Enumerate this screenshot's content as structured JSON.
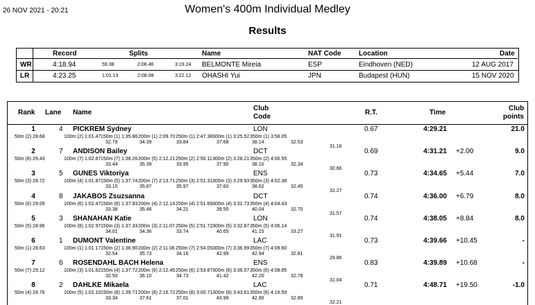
{
  "header": {
    "date": "26 NOV 2021 - 20:21",
    "title": "Women's 400m Individual Medley",
    "subtitle": "Results"
  },
  "records": {
    "columns": {
      "record": "Record",
      "splits": "Splits",
      "name": "Name",
      "nat": "NAT Code",
      "location": "Location",
      "date": "Date"
    },
    "rows": [
      {
        "label": "WR",
        "time": "4:18.94",
        "s1": "59.38",
        "s2": "2:06.46",
        "s3": "3:19.24",
        "name": "BELMONTE Mireia",
        "nat": "ESP",
        "location": "Eindhoven (NED)",
        "date": "12 AUG 2017"
      },
      {
        "label": "LR",
        "time": "4:23.25",
        "s1": "1:01.13",
        "s2": "2:08.08",
        "s3": "3:22.12",
        "name": "OHASHI Yui",
        "nat": "JPN",
        "location": "Budapest (HUN)",
        "date": "15 NOV 2020"
      }
    ]
  },
  "results": {
    "columns": {
      "rank": "Rank",
      "lane": "Lane",
      "name": "Name",
      "club1": "Club",
      "club2": "Code",
      "rt": "R.T.",
      "time": "Time",
      "pts1": "Club",
      "pts2": "points"
    },
    "rows": [
      {
        "rank": "1",
        "lane": "4",
        "name": "PICKREM Sydney",
        "club": "LON",
        "rt": "0.67",
        "time": "4:29.21",
        "behind": "",
        "points": "21.0",
        "splits": [
          "50m (2) 28.68",
          "100m (2) 1:01.47",
          "150m (1) 1:35.86",
          "200m (1) 2:09.70",
          "250m (1) 2:47.38",
          "300m (1) 3:25.52",
          "350m (1) 3:58.05"
        ],
        "seg": [
          "32.79",
          "34.39",
          "33.84",
          "37.68",
          "38.14",
          "32.53",
          "31.16"
        ]
      },
      {
        "rank": "2",
        "lane": "7",
        "name": "ANDISON Bailey",
        "club": "DCT",
        "rt": "0.69",
        "time": "4:31.21",
        "behind": "+2.00",
        "points": "9.0",
        "splits": [
          "50m (8) 29.43",
          "100m (7) 1:02.87",
          "150m (7) 1:38.26",
          "200m (5) 2:12.21",
          "250m (2) 2:50.11",
          "300m (2) 3:28.21",
          "350m (2) 4:00.55"
        ],
        "seg": [
          "33.44",
          "35.39",
          "33.95",
          "37.90",
          "38.10",
          "32.34",
          "30.66"
        ]
      },
      {
        "rank": "3",
        "lane": "5",
        "name": "GUNES Viktoriya",
        "club": "ENS",
        "rt": "0.73",
        "time": "4:34.65",
        "behind": "+5.44",
        "points": "7.0",
        "splits": [
          "50m (3) 28.72",
          "100m (4) 1:01.87",
          "150m (5) 1:37.74",
          "200m (7) 2:13.71",
          "250m (3) 2:51.31",
          "300m (3) 3:29.93",
          "350m (3) 4:02.38"
        ],
        "seg": [
          "33.15",
          "35.87",
          "35.97",
          "37.60",
          "38.62",
          "32.45",
          "32.27"
        ]
      },
      {
        "rank": "4",
        "lane": "8",
        "name": "JAKABOS Zsuzsanna",
        "club": "DCT",
        "rt": "0.74",
        "time": "4:36.00",
        "behind": "+6.79",
        "points": "8.0",
        "splits": [
          "50m (6) 29.09",
          "100m (6) 1:02.47",
          "150m (6) 1:37.93",
          "200m (4) 2:12.14",
          "250m (4) 2:51.69",
          "300m (4) 3:31.73",
          "350m (4) 4:04.43"
        ],
        "seg": [
          "33.38",
          "35.46",
          "34.21",
          "39.55",
          "40.04",
          "32.70",
          "31.57"
        ]
      },
      {
        "rank": "5",
        "lane": "3",
        "name": "SHANAHAN Katie",
        "club": "LON",
        "rt": "0.74",
        "time": "4:38.05",
        "behind": "+8.84",
        "points": "8.0",
        "splits": [
          "50m (5) 28.96",
          "100m (8) 1:02.97",
          "150m (3) 1:37.33",
          "200m (3) 2:11.07",
          "250m (5) 2:51.72",
          "300m (5) 3:32.87",
          "350m (5) 4:06.14"
        ],
        "seg": [
          "34.01",
          "34.36",
          "33.74",
          "40.65",
          "41.15",
          "33.27",
          "31.91"
        ]
      },
      {
        "rank": "6",
        "lane": "1",
        "name": "DUMONT Valentine",
        "club": "LAC",
        "rt": "0.73",
        "time": "4:39.66",
        "behind": "+10.45",
        "points": "-",
        "splits": [
          "50m (1) 28.63",
          "100m (1) 1:01.17",
          "150m (2) 1:36.90",
          "200m (2) 2:11.06",
          "250m (7) 2:54.05",
          "300m (7) 3:36.99",
          "350m (7) 4:09.80"
        ],
        "seg": [
          "32.54",
          "35.73",
          "34.16",
          "42.99",
          "42.94",
          "32.81",
          "29.86"
        ]
      },
      {
        "rank": "7",
        "lane": "6",
        "name": "ROSENDAHL BACH Helena",
        "club": "ENS",
        "rt": "0.83",
        "time": "4:39.89",
        "behind": "+10.68",
        "points": "-",
        "splits": [
          "50m (7) 29.12",
          "100m (3) 1:01.62",
          "150m (4) 1:37.72",
          "200m (6) 2:12.45",
          "250m (6) 2:53.87",
          "300m (6) 3:36.07",
          "350m (6) 4:08.85"
        ],
        "seg": [
          "32.50",
          "36.10",
          "34.73",
          "41.42",
          "42.20",
          "32.78",
          "31.04"
        ]
      },
      {
        "rank": "8",
        "lane": "2",
        "name": "DAHLKE Mikaela",
        "club": "LAC",
        "rt": "0.71",
        "time": "4:48.71",
        "behind": "+19.50",
        "points": "-1.0",
        "splits": [
          "50m (4) 28.76",
          "100m (5) 1:02.10",
          "150m (8) 1:39.71",
          "200m (8) 2:16.72",
          "250m (8) 3:00.71",
          "300m (8) 3:43.61",
          "350m (8) 4:16.50"
        ],
        "seg": [
          "33.34",
          "37.61",
          "37.01",
          "43.99",
          "42.90",
          "32.89",
          "32.21"
        ]
      }
    ]
  }
}
